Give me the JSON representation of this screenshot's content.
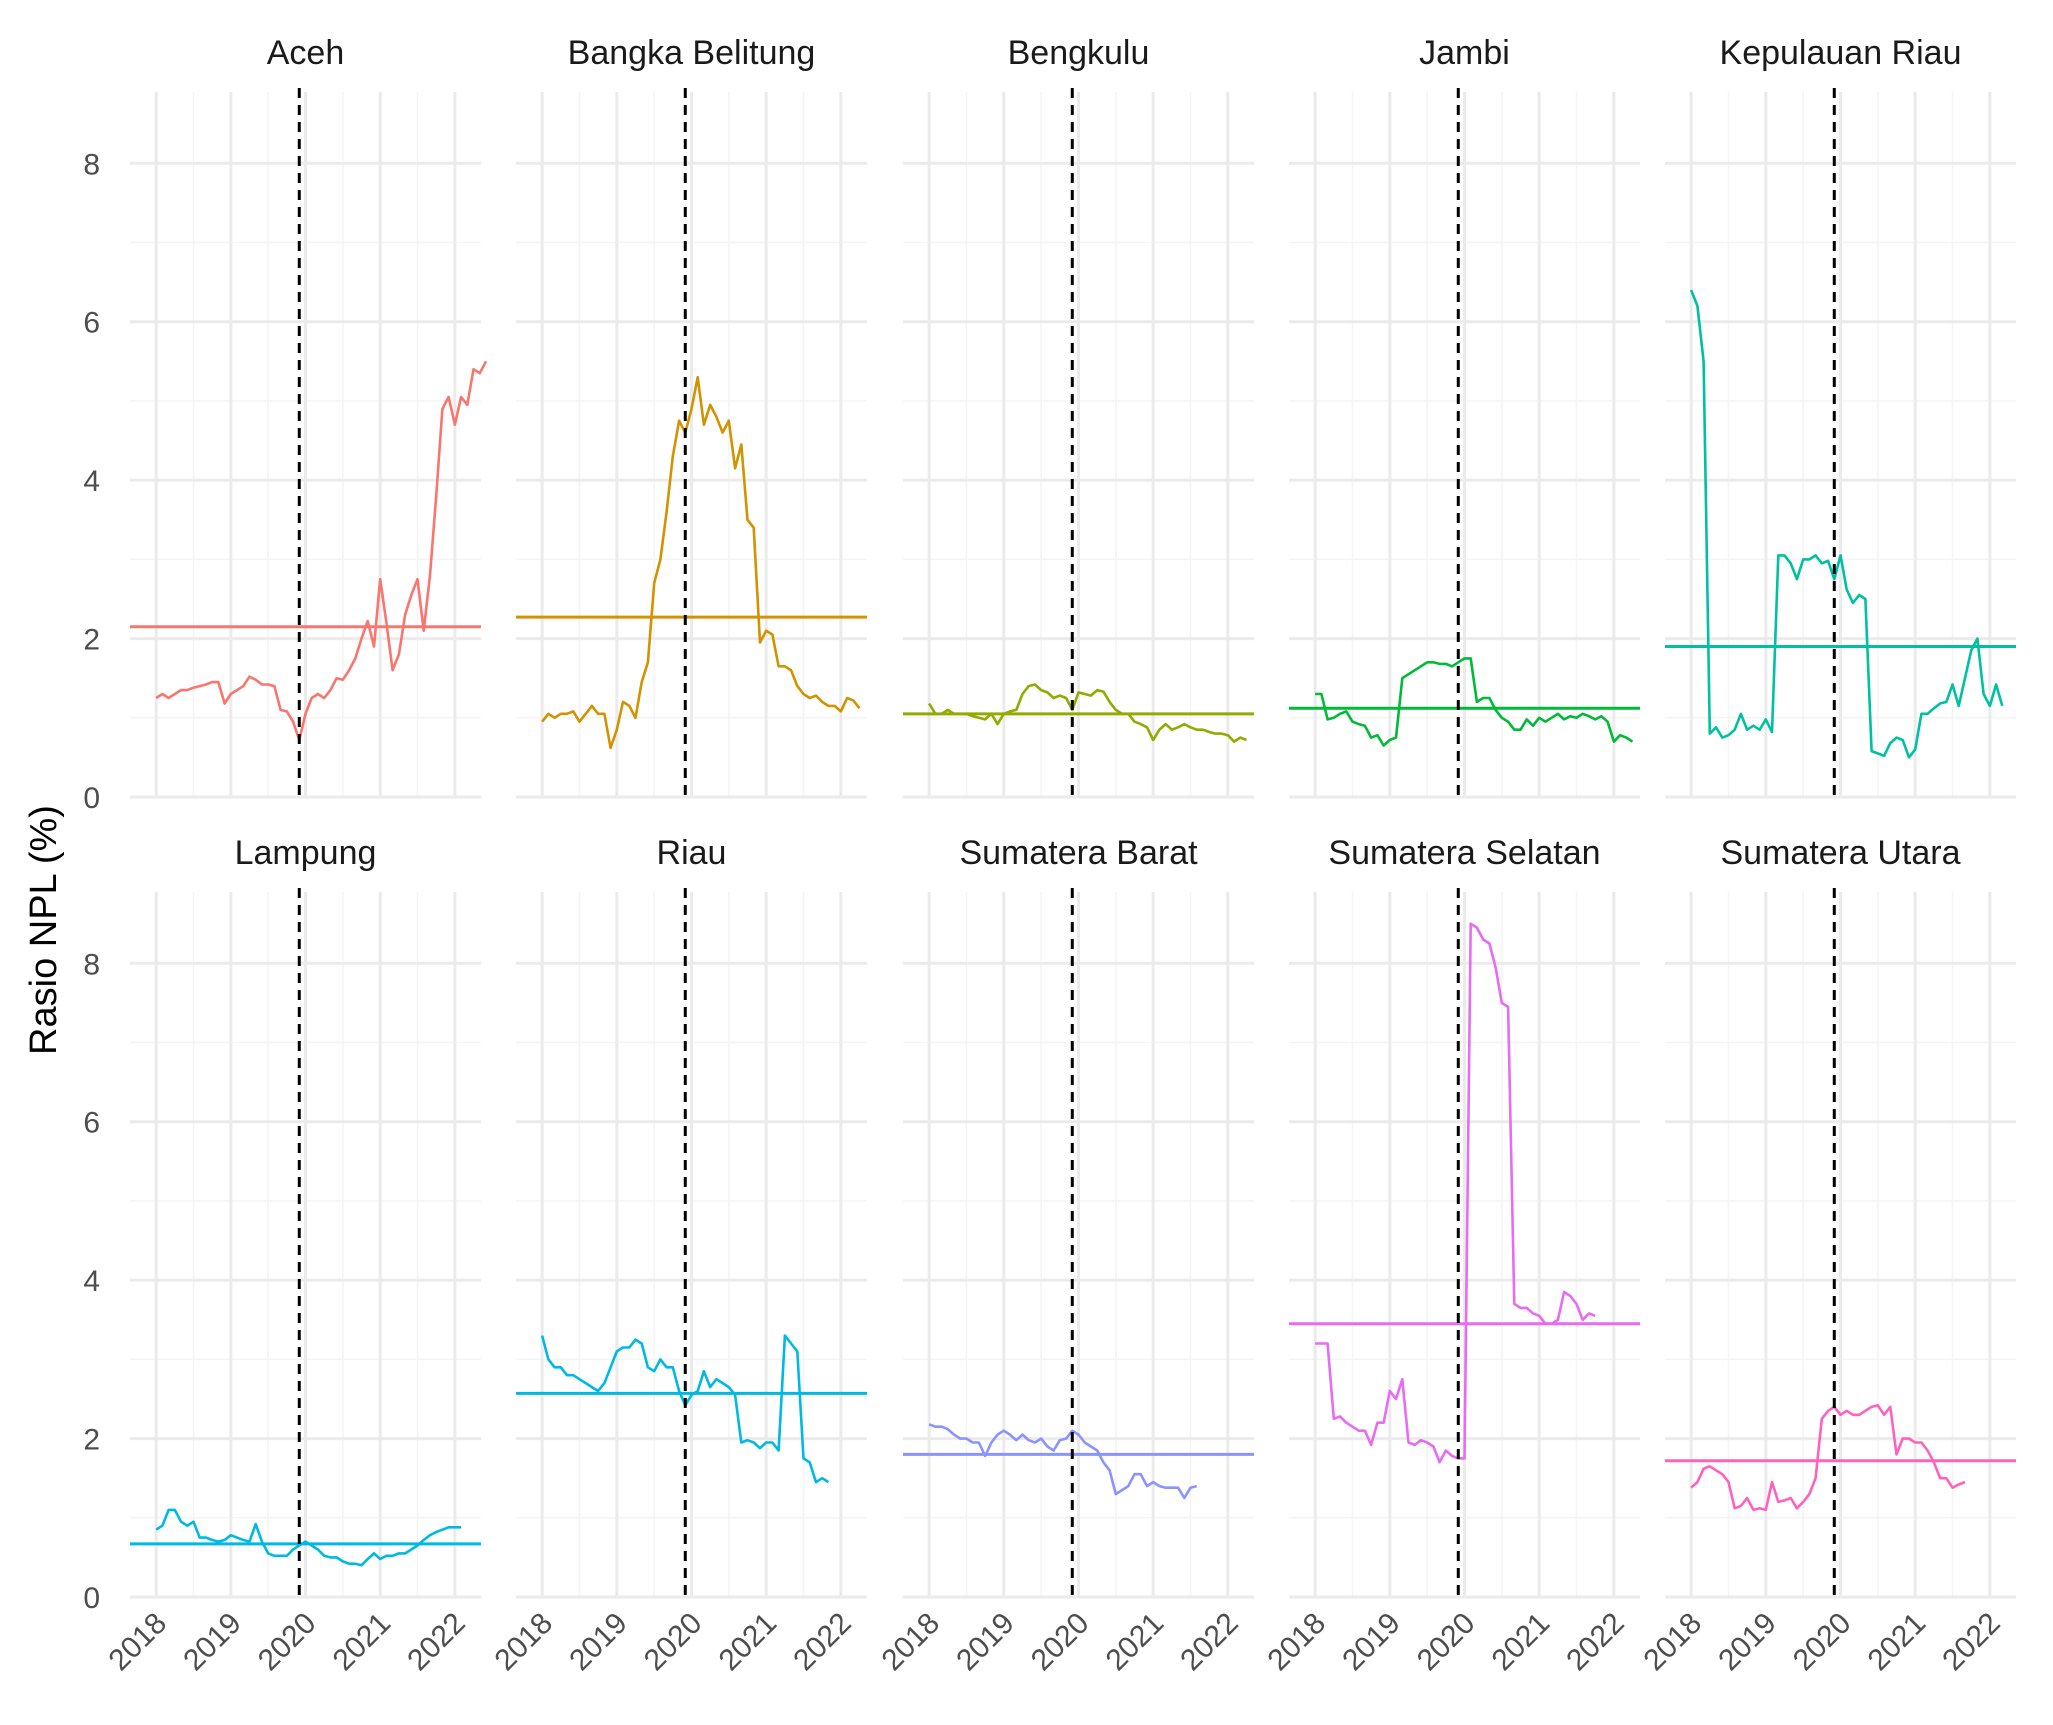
{
  "figure": {
    "ylabel": "Rasio NPL (%)",
    "x_ticks": [
      "2018",
      "2019",
      "2020",
      "2021",
      "2022"
    ],
    "y_ticks": [
      "0",
      "2",
      "4",
      "6",
      "8"
    ]
  },
  "chart_data": {
    "type": "line",
    "facets_rows": 2,
    "facets_cols": 5,
    "ylabel": "Rasio NPL (%)",
    "xlabel": "",
    "ylim": [
      0,
      8.9
    ],
    "xlim": [
      2017.65,
      2022.35
    ],
    "x_ticks": [
      2018,
      2019,
      2020,
      2021,
      2022
    ],
    "y_ticks": [
      0,
      2,
      4,
      6,
      8
    ],
    "grid": true,
    "vline_x": "2019-12",
    "legend": "none",
    "panels": [
      {
        "name": "Aceh",
        "color": "#F8766D",
        "hline": 2.15,
        "start": "2018-01",
        "values": [
          1.25,
          1.3,
          1.25,
          1.3,
          1.35,
          1.35,
          1.38,
          1.4,
          1.42,
          1.45,
          1.45,
          1.18,
          1.3,
          1.35,
          1.4,
          1.52,
          1.48,
          1.42,
          1.42,
          1.4,
          1.1,
          1.08,
          0.95,
          0.72,
          1.05,
          1.25,
          1.3,
          1.25,
          1.35,
          1.5,
          1.48,
          1.6,
          1.75,
          2.0,
          2.22,
          1.9,
          2.75,
          2.2,
          1.6,
          1.8,
          2.3,
          2.55,
          2.75,
          2.1,
          2.8,
          3.8,
          4.9,
          5.05,
          4.7,
          5.05,
          4.95,
          5.4,
          5.35,
          5.5
        ]
      },
      {
        "name": "Bangka Belitung",
        "color": "#D39200",
        "hline": 2.27,
        "start": "2018-01",
        "values": [
          0.95,
          1.05,
          1.0,
          1.05,
          1.05,
          1.08,
          0.95,
          1.05,
          1.15,
          1.05,
          1.05,
          0.62,
          0.85,
          1.2,
          1.15,
          1.0,
          1.45,
          1.7,
          2.7,
          3.0,
          3.6,
          4.3,
          4.75,
          4.6,
          4.9,
          5.3,
          4.7,
          4.95,
          4.8,
          4.6,
          4.75,
          4.15,
          4.45,
          3.5,
          3.4,
          1.95,
          2.1,
          2.05,
          1.65,
          1.65,
          1.6,
          1.4,
          1.3,
          1.25,
          1.28,
          1.2,
          1.15,
          1.15,
          1.08,
          1.25,
          1.22,
          1.12
        ]
      },
      {
        "name": "Bengkulu",
        "color": "#93AA00",
        "hline": 1.05,
        "start": "2018-01",
        "values": [
          1.18,
          1.05,
          1.05,
          1.1,
          1.05,
          1.05,
          1.05,
          1.02,
          1.0,
          0.98,
          1.05,
          0.92,
          1.05,
          1.08,
          1.1,
          1.3,
          1.4,
          1.42,
          1.35,
          1.32,
          1.25,
          1.28,
          1.25,
          1.1,
          1.32,
          1.3,
          1.28,
          1.35,
          1.33,
          1.2,
          1.1,
          1.05,
          1.05,
          0.95,
          0.92,
          0.88,
          0.72,
          0.85,
          0.92,
          0.85,
          0.88,
          0.92,
          0.88,
          0.85,
          0.85,
          0.82,
          0.8,
          0.8,
          0.78,
          0.7,
          0.75,
          0.72
        ]
      },
      {
        "name": "Jambi",
        "color": "#00BA38",
        "hline": 1.12,
        "start": "2018-01",
        "values": [
          1.3,
          1.3,
          0.98,
          1.0,
          1.05,
          1.08,
          0.95,
          0.92,
          0.9,
          0.75,
          0.78,
          0.65,
          0.72,
          0.75,
          1.5,
          1.55,
          1.6,
          1.65,
          1.7,
          1.7,
          1.68,
          1.68,
          1.65,
          1.7,
          1.75,
          1.75,
          1.2,
          1.25,
          1.25,
          1.1,
          1.0,
          0.95,
          0.85,
          0.85,
          0.98,
          0.9,
          1.0,
          0.95,
          1.0,
          1.05,
          0.98,
          1.02,
          1.0,
          1.05,
          1.02,
          0.98,
          1.02,
          0.95,
          0.7,
          0.78,
          0.75,
          0.7
        ]
      },
      {
        "name": "Kepulauan Riau",
        "color": "#00C19F",
        "hline": 1.9,
        "start": "2018-01",
        "values": [
          6.4,
          6.2,
          5.5,
          0.8,
          0.88,
          0.75,
          0.78,
          0.85,
          1.05,
          0.85,
          0.9,
          0.85,
          0.98,
          0.82,
          3.05,
          3.05,
          2.95,
          2.75,
          3.0,
          3.0,
          3.05,
          2.95,
          2.98,
          2.75,
          3.05,
          2.62,
          2.45,
          2.55,
          2.5,
          0.58,
          0.55,
          0.52,
          0.68,
          0.75,
          0.72,
          0.5,
          0.6,
          1.05,
          1.05,
          1.12,
          1.18,
          1.2,
          1.42,
          1.15,
          1.5,
          1.85,
          2.0,
          1.3,
          1.15,
          1.42,
          1.15
        ]
      },
      {
        "name": "Lampung",
        "color": "#00B9E3",
        "hline": 0.67,
        "start": "2018-01",
        "values": [
          0.85,
          0.9,
          1.1,
          1.1,
          0.95,
          0.9,
          0.95,
          0.75,
          0.75,
          0.72,
          0.7,
          0.72,
          0.78,
          0.75,
          0.72,
          0.7,
          0.92,
          0.7,
          0.55,
          0.52,
          0.52,
          0.52,
          0.6,
          0.65,
          0.7,
          0.65,
          0.6,
          0.52,
          0.5,
          0.5,
          0.45,
          0.42,
          0.42,
          0.4,
          0.48,
          0.55,
          0.48,
          0.52,
          0.52,
          0.55,
          0.55,
          0.6,
          0.65,
          0.72,
          0.78,
          0.82,
          0.85,
          0.88,
          0.88,
          0.88
        ]
      },
      {
        "name": "Riau",
        "color": "#00B9E3",
        "hline": 2.57,
        "start": "2018-01",
        "values": [
          3.3,
          3.0,
          2.9,
          2.9,
          2.8,
          2.8,
          2.75,
          2.7,
          2.65,
          2.6,
          2.7,
          2.9,
          3.1,
          3.15,
          3.15,
          3.25,
          3.2,
          2.9,
          2.85,
          3.0,
          2.9,
          2.9,
          2.6,
          2.42,
          2.55,
          2.6,
          2.85,
          2.65,
          2.75,
          2.7,
          2.65,
          2.55,
          1.95,
          1.98,
          1.95,
          1.88,
          1.95,
          1.95,
          1.85,
          3.3,
          3.2,
          3.1,
          1.75,
          1.7,
          1.45,
          1.5,
          1.45
        ]
      },
      {
        "name": "Sumatera Barat",
        "color": "#8B93FF",
        "hline": 1.8,
        "start": "2018-01",
        "values": [
          2.18,
          2.15,
          2.15,
          2.12,
          2.05,
          2.0,
          2.0,
          1.95,
          1.95,
          1.78,
          1.95,
          2.05,
          2.1,
          2.05,
          1.98,
          2.05,
          1.98,
          1.95,
          2.0,
          1.9,
          1.85,
          1.98,
          2.0,
          2.1,
          2.05,
          1.95,
          1.9,
          1.85,
          1.7,
          1.6,
          1.3,
          1.35,
          1.4,
          1.55,
          1.55,
          1.4,
          1.45,
          1.4,
          1.38,
          1.38,
          1.38,
          1.25,
          1.38,
          1.4
        ]
      },
      {
        "name": "Sumatera Selatan",
        "color": "#E76BF3",
        "hline": 3.45,
        "start": "2018-01",
        "values": [
          3.2,
          3.2,
          3.2,
          2.25,
          2.28,
          2.2,
          2.15,
          2.1,
          2.1,
          1.92,
          2.2,
          2.2,
          2.6,
          2.5,
          2.75,
          1.95,
          1.92,
          1.98,
          1.95,
          1.9,
          1.7,
          1.85,
          1.78,
          1.75,
          1.75,
          8.5,
          8.45,
          8.3,
          8.25,
          7.95,
          7.5,
          7.45,
          3.7,
          3.65,
          3.65,
          3.58,
          3.55,
          3.45,
          3.45,
          3.5,
          3.85,
          3.8,
          3.7,
          3.5,
          3.58,
          3.55
        ]
      },
      {
        "name": "Sumatera Utara",
        "color": "#FF62BC",
        "hline": 1.72,
        "start": "2018-01",
        "values": [
          1.38,
          1.45,
          1.62,
          1.65,
          1.6,
          1.55,
          1.45,
          1.12,
          1.15,
          1.25,
          1.1,
          1.12,
          1.1,
          1.45,
          1.2,
          1.22,
          1.25,
          1.12,
          1.2,
          1.3,
          1.5,
          2.25,
          2.35,
          2.4,
          2.3,
          2.35,
          2.3,
          2.3,
          2.35,
          2.4,
          2.42,
          2.3,
          2.4,
          1.8,
          2.0,
          2.0,
          1.95,
          1.95,
          1.85,
          1.7,
          1.5,
          1.5,
          1.38,
          1.42,
          1.45
        ]
      }
    ]
  }
}
